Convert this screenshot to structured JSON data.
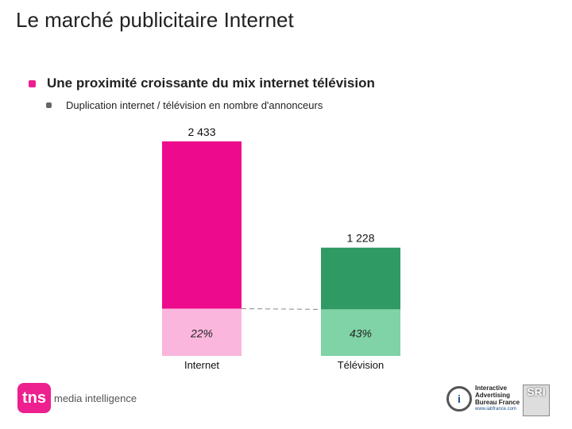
{
  "page": {
    "title": "Le marché publicitaire Internet",
    "bullet_main": "Une proximité croissante du mix internet télévision",
    "bullet_sub": "Duplication internet / télévision en nombre d'annonceurs"
  },
  "colors": {
    "accent": "#ee1f8e",
    "internet_dark": "#ee0a8c",
    "internet_light": "#fab6dc",
    "tv_dark": "#2f9a64",
    "tv_light": "#7fd3a6",
    "dash": "#888888"
  },
  "chart_data": {
    "type": "bar",
    "categories": [
      "Internet",
      "Télévision"
    ],
    "values": [
      2433,
      1228
    ],
    "value_labels": [
      "2 433",
      "1 228"
    ],
    "duplication_percent": [
      22,
      43
    ],
    "duplication_labels": [
      "22%",
      "43%"
    ],
    "title": "",
    "xlabel": "",
    "ylabel": "",
    "ylim": [
      0,
      2433
    ]
  },
  "logos": {
    "tns": {
      "mark": "tns",
      "suffix": "media intelligence"
    },
    "iab": {
      "icon": "i",
      "lines": [
        "Interactive",
        "Advertising",
        "Bureau France"
      ],
      "url": "www.iabfrance.com"
    },
    "sri": {
      "text": "SRI"
    }
  }
}
